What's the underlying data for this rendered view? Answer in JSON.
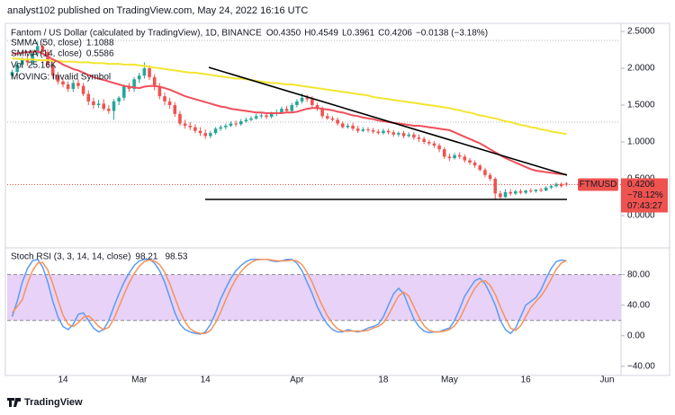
{
  "header": {
    "attribution": "analyst102 published on TradingView.com, May 24, 2022 16:16 UTC"
  },
  "chart_data": [
    {
      "type": "candlestick",
      "title": "Fantom / US Dollar (calculated by TradingView), 1D, BINANCE",
      "ohlc_labels": [
        "O0.4350",
        "H0.4549",
        "L0.3961",
        "C0.4206",
        "−0.0138 (−3.18%)"
      ],
      "categories": [
        null,
        null,
        null,
        null,
        null,
        null,
        null,
        null,
        null,
        null,
        "14",
        null,
        null,
        null,
        null,
        null,
        null,
        null,
        null,
        null,
        null,
        null,
        null,
        null,
        null,
        "Mar",
        null,
        null,
        null,
        null,
        null,
        null,
        null,
        null,
        null,
        null,
        null,
        null,
        "14",
        null,
        null,
        null,
        null,
        null,
        null,
        null,
        null,
        null,
        null,
        null,
        null,
        null,
        null,
        null,
        null,
        null,
        "Apr",
        null,
        null,
        null,
        null,
        null,
        null,
        null,
        null,
        null,
        null,
        null,
        null,
        null,
        null,
        null,
        null,
        "18",
        null,
        null,
        null,
        null,
        null,
        null,
        null,
        null,
        null,
        null,
        null,
        null,
        "May",
        null,
        null,
        null,
        null,
        null,
        null,
        null,
        null,
        null,
        null,
        null,
        null,
        null,
        null,
        "16",
        null,
        null,
        null,
        null,
        null,
        null,
        null,
        null,
        null,
        null,
        null,
        null,
        null,
        null,
        null,
        "Jun",
        null,
        null
      ],
      "open": [
        1.9,
        1.95,
        2.05,
        2.12,
        2.08,
        2.2,
        2.3,
        2.22,
        2.05,
        1.9,
        1.82,
        1.78,
        1.72,
        1.8,
        1.76,
        1.65,
        1.55,
        1.5,
        1.52,
        1.45,
        1.42,
        1.55,
        1.6,
        1.75,
        1.72,
        1.85,
        1.9,
        2.0,
        1.88,
        1.75,
        1.62,
        1.55,
        1.5,
        1.38,
        1.25,
        1.22,
        1.2,
        1.15,
        1.12,
        1.08,
        1.12,
        1.18,
        1.2,
        1.22,
        1.25,
        1.24,
        1.28,
        1.3,
        1.32,
        1.35,
        1.36,
        1.34,
        1.38,
        1.4,
        1.45,
        1.42,
        1.5,
        1.55,
        1.6,
        1.58,
        1.5,
        1.45,
        1.35,
        1.32,
        1.3,
        1.25,
        1.2,
        1.22,
        1.18,
        1.15,
        1.17,
        1.16,
        1.14,
        1.12,
        1.15,
        1.13,
        1.1,
        1.12,
        1.08,
        1.1,
        1.06,
        1.04,
        1.0,
        0.98,
        0.95,
        0.9,
        0.8,
        0.78,
        0.82,
        0.8,
        0.75,
        0.72,
        0.68,
        0.62,
        0.55,
        0.5,
        0.3,
        0.25,
        0.32,
        0.3,
        0.33,
        0.31,
        0.34,
        0.33,
        0.35,
        0.34,
        0.38,
        0.4,
        0.43,
        0.435,
        null,
        null,
        null,
        null,
        null,
        null,
        null,
        null,
        null,
        null
      ],
      "high": [
        1.98,
        2.1,
        2.15,
        2.18,
        2.25,
        2.36,
        2.34,
        2.26,
        2.1,
        1.95,
        1.86,
        1.82,
        1.84,
        1.85,
        1.8,
        1.7,
        1.6,
        1.57,
        1.58,
        1.5,
        1.58,
        1.62,
        1.78,
        1.8,
        1.88,
        1.94,
        2.08,
        2.04,
        1.92,
        1.8,
        1.67,
        1.6,
        1.54,
        1.42,
        1.3,
        1.27,
        1.24,
        1.2,
        1.17,
        1.15,
        1.2,
        1.23,
        1.25,
        1.28,
        1.29,
        1.31,
        1.33,
        1.35,
        1.38,
        1.4,
        1.4,
        1.41,
        1.44,
        1.48,
        1.49,
        1.53,
        1.58,
        1.66,
        1.64,
        1.62,
        1.53,
        1.48,
        1.39,
        1.35,
        1.33,
        1.28,
        1.25,
        1.26,
        1.22,
        1.2,
        1.2,
        1.19,
        1.17,
        1.18,
        1.18,
        1.16,
        1.14,
        1.15,
        1.13,
        1.13,
        1.1,
        1.07,
        1.03,
        1.01,
        0.98,
        0.93,
        0.84,
        0.85,
        0.86,
        0.83,
        0.78,
        0.75,
        0.7,
        0.65,
        0.58,
        0.52,
        0.34,
        0.36,
        0.36,
        0.35,
        0.36,
        0.35,
        0.37,
        0.36,
        0.38,
        0.4,
        0.42,
        0.45,
        0.45,
        0.4549,
        null,
        null,
        null,
        null,
        null,
        null,
        null,
        null,
        null,
        null
      ],
      "low": [
        1.85,
        1.9,
        2.0,
        2.03,
        2.04,
        2.16,
        2.18,
        2.0,
        1.86,
        1.78,
        1.74,
        1.68,
        1.68,
        1.72,
        1.62,
        1.5,
        1.45,
        1.46,
        1.42,
        1.38,
        1.3,
        1.5,
        1.56,
        1.68,
        1.68,
        1.8,
        1.86,
        1.84,
        1.7,
        1.58,
        1.5,
        1.45,
        1.34,
        1.22,
        1.18,
        1.16,
        1.12,
        1.08,
        1.04,
        1.05,
        1.1,
        1.15,
        1.17,
        1.2,
        1.21,
        1.22,
        1.26,
        1.28,
        1.3,
        1.32,
        1.31,
        1.32,
        1.35,
        1.38,
        1.4,
        1.4,
        1.47,
        1.52,
        1.54,
        1.47,
        1.42,
        1.32,
        1.3,
        1.28,
        1.22,
        1.18,
        1.18,
        1.15,
        1.12,
        1.13,
        1.13,
        1.11,
        1.1,
        1.1,
        1.1,
        1.07,
        1.07,
        1.05,
        1.06,
        1.03,
        1.0,
        0.97,
        0.95,
        0.92,
        0.86,
        0.77,
        0.74,
        0.76,
        0.77,
        0.72,
        0.69,
        0.65,
        0.6,
        0.52,
        0.47,
        0.22,
        0.23,
        0.24,
        0.27,
        0.28,
        0.29,
        0.29,
        0.31,
        0.31,
        0.32,
        0.33,
        0.36,
        0.38,
        0.38,
        0.3961,
        null,
        null,
        null,
        null,
        null,
        null,
        null,
        null,
        null,
        null
      ],
      "close": [
        1.95,
        2.05,
        2.12,
        2.08,
        2.2,
        2.3,
        2.22,
        2.05,
        1.9,
        1.82,
        1.78,
        1.72,
        1.8,
        1.76,
        1.65,
        1.55,
        1.5,
        1.52,
        1.45,
        1.42,
        1.55,
        1.6,
        1.75,
        1.72,
        1.85,
        1.9,
        2.0,
        1.88,
        1.75,
        1.62,
        1.55,
        1.5,
        1.38,
        1.25,
        1.22,
        1.2,
        1.15,
        1.12,
        1.08,
        1.12,
        1.18,
        1.2,
        1.22,
        1.25,
        1.24,
        1.28,
        1.3,
        1.32,
        1.35,
        1.36,
        1.34,
        1.38,
        1.4,
        1.45,
        1.42,
        1.5,
        1.55,
        1.6,
        1.58,
        1.5,
        1.45,
        1.35,
        1.32,
        1.3,
        1.25,
        1.2,
        1.22,
        1.18,
        1.15,
        1.17,
        1.16,
        1.14,
        1.12,
        1.15,
        1.13,
        1.1,
        1.12,
        1.08,
        1.1,
        1.06,
        1.04,
        1.0,
        0.98,
        0.95,
        0.9,
        0.8,
        0.78,
        0.82,
        0.8,
        0.75,
        0.72,
        0.68,
        0.62,
        0.55,
        0.5,
        0.3,
        0.25,
        0.32,
        0.3,
        0.33,
        0.31,
        0.34,
        0.33,
        0.35,
        0.34,
        0.38,
        0.4,
        0.43,
        0.4,
        0.4206,
        null,
        null,
        null,
        null,
        null,
        null,
        null,
        null,
        null,
        null
      ],
      "up_color": "#26a69a",
      "down_color": "#ef5350",
      "series": [
        {
          "name": "SMMA (50, close)",
          "color": "#f2e531",
          "values": [
            2.13,
            2.13,
            2.12,
            2.12,
            2.12,
            2.11,
            2.11,
            2.11,
            2.1,
            2.1,
            2.09,
            2.09,
            2.09,
            2.08,
            2.08,
            2.08,
            2.07,
            2.07,
            2.07,
            2.06,
            2.06,
            2.06,
            2.05,
            2.05,
            2.05,
            2.04,
            2.03,
            2.02,
            2.01,
            2.0,
            1.99,
            1.98,
            1.97,
            1.96,
            1.95,
            1.94,
            1.94,
            1.93,
            1.92,
            1.91,
            1.9,
            1.89,
            1.88,
            1.87,
            1.86,
            1.86,
            1.85,
            1.84,
            1.83,
            1.82,
            1.81,
            1.8,
            1.8,
            1.79,
            1.78,
            1.78,
            1.77,
            1.76,
            1.75,
            1.74,
            1.73,
            1.72,
            1.71,
            1.7,
            1.69,
            1.68,
            1.67,
            1.66,
            1.65,
            1.64,
            1.63,
            1.61,
            1.6,
            1.59,
            1.58,
            1.57,
            1.56,
            1.55,
            1.54,
            1.53,
            1.52,
            1.51,
            1.5,
            1.49,
            1.48,
            1.47,
            1.46,
            1.44,
            1.43,
            1.41,
            1.4,
            1.38,
            1.36,
            1.35,
            1.33,
            1.32,
            1.3,
            1.28,
            1.27,
            1.25,
            1.23,
            1.22,
            1.2,
            1.19,
            1.17,
            1.16,
            1.14,
            1.13,
            1.12,
            1.1088,
            null,
            null,
            null,
            null,
            null,
            null,
            null,
            null,
            null,
            null
          ]
        },
        {
          "name": "SMMA (14, close)",
          "color": "#ef4f5a",
          "values": [
            2.2,
            2.2,
            2.21,
            2.22,
            2.22,
            2.23,
            2.2,
            2.16,
            2.12,
            2.09,
            2.05,
            2.02,
            1.99,
            1.97,
            1.94,
            1.91,
            1.88,
            1.86,
            1.84,
            1.82,
            1.8,
            1.78,
            1.76,
            1.75,
            1.74,
            1.73,
            1.75,
            1.76,
            1.76,
            1.75,
            1.73,
            1.71,
            1.68,
            1.65,
            1.62,
            1.6,
            1.58,
            1.56,
            1.54,
            1.52,
            1.5,
            1.48,
            1.47,
            1.45,
            1.44,
            1.43,
            1.42,
            1.41,
            1.4,
            1.4,
            1.39,
            1.39,
            1.39,
            1.39,
            1.4,
            1.4,
            1.41,
            1.43,
            1.45,
            1.46,
            1.46,
            1.45,
            1.44,
            1.43,
            1.41,
            1.4,
            1.38,
            1.36,
            1.35,
            1.33,
            1.32,
            1.31,
            1.29,
            1.28,
            1.27,
            1.26,
            1.25,
            1.24,
            1.23,
            1.22,
            1.22,
            1.21,
            1.2,
            1.19,
            1.18,
            1.17,
            1.16,
            1.13,
            1.1,
            1.07,
            1.04,
            1.01,
            0.98,
            0.94,
            0.9,
            0.86,
            0.82,
            0.78,
            0.75,
            0.72,
            0.69,
            0.66,
            0.63,
            0.61,
            0.6,
            0.59,
            0.58,
            0.57,
            0.565,
            0.5586,
            null,
            null,
            null,
            null,
            null,
            null,
            null,
            null,
            null,
            null
          ]
        }
      ],
      "volume_label": "Vol",
      "volume_value": "25.16K",
      "moving_label": "MOVING: Invalid Symbol",
      "symbol": "FTMUSD",
      "change_percent": "−78.12%",
      "countdown": "07:43:27",
      "ylim": [
        -0.39,
        2.585
      ],
      "yticks": [
        {
          "value": 2.5,
          "label": "2.5000"
        },
        {
          "value": 2,
          "label": "2.0000"
        },
        {
          "value": 1.5,
          "label": "1.5000"
        },
        {
          "value": 1,
          "label": "1.0000"
        },
        {
          "value": 0.5,
          "label": "0.5000"
        },
        {
          "value": 0,
          "label": "0.0000"
        }
      ]
    },
    {
      "type": "line",
      "title": "Stoch RSI (3, 3, 14, 14, close)",
      "series": [
        {
          "name": "K",
          "color": "#5b9cf6",
          "values": [
            25,
            45,
            70,
            88,
            98,
            100,
            90,
            70,
            45,
            25,
            12,
            8,
            15,
            28,
            30,
            20,
            10,
            5,
            8,
            20,
            38,
            55,
            70,
            82,
            92,
            98,
            100,
            100,
            95,
            85,
            70,
            50,
            30,
            15,
            8,
            5,
            3,
            2,
            5,
            15,
            30,
            48,
            62,
            75,
            85,
            92,
            97,
            100,
            100,
            100,
            100,
            98,
            97,
            98,
            100,
            100,
            95,
            85,
            70,
            55,
            38,
            25,
            15,
            8,
            5,
            5,
            8,
            6,
            5,
            7,
            10,
            12,
            15,
            25,
            40,
            55,
            62,
            55,
            38,
            22,
            12,
            6,
            4,
            5,
            5,
            8,
            10,
            20,
            35,
            52,
            62,
            72,
            75,
            68,
            55,
            40,
            20,
            8,
            3,
            10,
            25,
            40,
            45,
            50,
            60,
            75,
            88,
            97,
            99,
            98.21,
            null,
            null,
            null,
            null,
            null,
            null,
            null,
            null,
            null,
            null
          ]
        },
        {
          "name": "D",
          "color": "#f7925a",
          "values": [
            30,
            38,
            47,
            68,
            85,
            95,
            96,
            86,
            68,
            47,
            27,
            15,
            12,
            17,
            24,
            26,
            20,
            12,
            8,
            11,
            22,
            38,
            54,
            69,
            81,
            91,
            97,
            99,
            98,
            93,
            83,
            68,
            50,
            32,
            18,
            9,
            5,
            3,
            3,
            7,
            17,
            31,
            47,
            62,
            74,
            84,
            91,
            96,
            99,
            100,
            100,
            99,
            98,
            98,
            98,
            99,
            98,
            93,
            83,
            70,
            54,
            39,
            26,
            16,
            9,
            6,
            6,
            6,
            6,
            6,
            7,
            10,
            12,
            17,
            27,
            40,
            52,
            57,
            52,
            38,
            24,
            13,
            7,
            5,
            5,
            6,
            8,
            13,
            22,
            36,
            50,
            62,
            70,
            72,
            66,
            54,
            38,
            23,
            10,
            7,
            13,
            25,
            37,
            45,
            52,
            62,
            74,
            87,
            95,
            98.53,
            null,
            null,
            null,
            null,
            null,
            null,
            null,
            null,
            null,
            null
          ]
        }
      ],
      "band": [
        20,
        80
      ],
      "band_color": "#e8d2f7",
      "ylim": [
        -52,
        109
      ],
      "yticks": [
        {
          "value": 80,
          "label": "80.00"
        },
        {
          "value": 40,
          "label": "40.00"
        },
        {
          "value": 0,
          "label": "0.00"
        },
        {
          "value": -40,
          "label": "−40.00"
        }
      ]
    }
  ],
  "footer": {
    "logo": "TradingView"
  }
}
